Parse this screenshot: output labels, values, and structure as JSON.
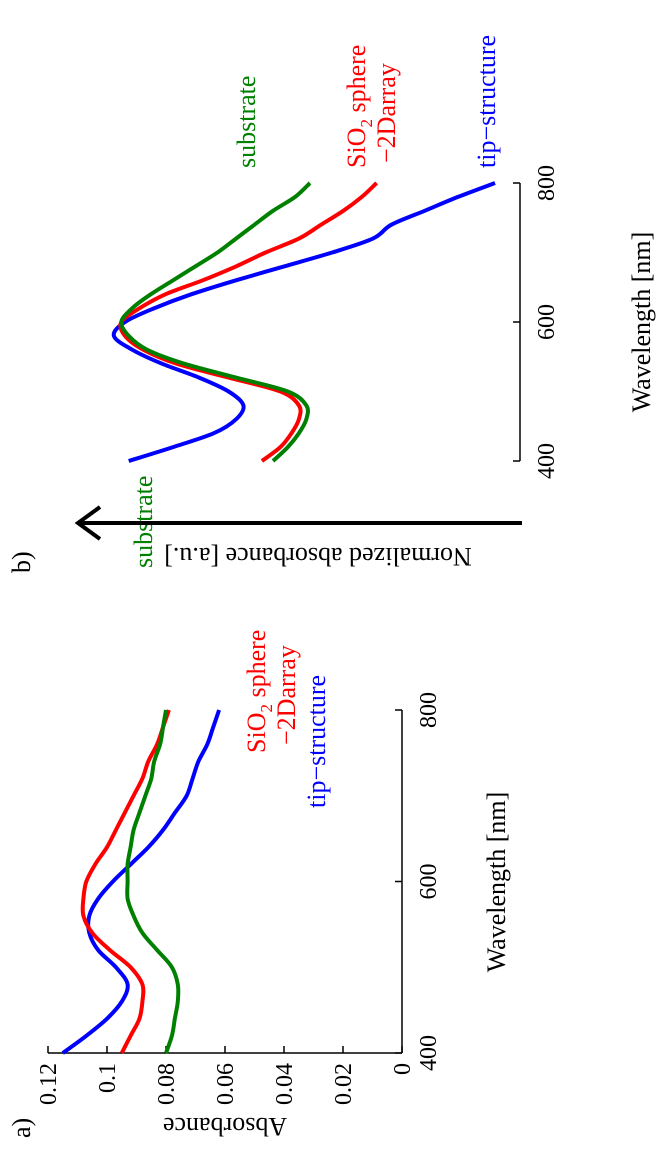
{
  "chart_data": [
    {
      "panel": "a)",
      "type": "line",
      "xlabel": "Wavelength [nm]",
      "ylabel": "Absorbance",
      "xlim": [
        400,
        800
      ],
      "ylim": [
        0,
        0.12
      ],
      "xticks": [
        "400",
        "600",
        "800"
      ],
      "yticks": [
        "0",
        "0.02",
        "0.04",
        "0.06",
        "0.08",
        "0.1",
        "0.12"
      ],
      "grid": false,
      "series": [
        {
          "name": "tip−structure",
          "color": "#0000ff",
          "x": [
            400,
            420,
            440,
            460,
            480,
            500,
            520,
            540,
            560,
            580,
            600,
            620,
            640,
            660,
            680,
            700,
            720,
            740,
            760,
            780,
            800
          ],
          "y": [
            0.115,
            0.107,
            0.1,
            0.095,
            0.093,
            0.097,
            0.103,
            0.106,
            0.106,
            0.103,
            0.098,
            0.092,
            0.086,
            0.081,
            0.077,
            0.073,
            0.071,
            0.069,
            0.066,
            0.064,
            0.062
          ]
        },
        {
          "name": "SiO2 sphere −2Darray",
          "color": "#ff0000",
          "x": [
            400,
            420,
            440,
            460,
            480,
            500,
            520,
            540,
            560,
            580,
            600,
            620,
            640,
            660,
            680,
            700,
            720,
            740,
            760,
            780,
            800
          ],
          "y": [
            0.095,
            0.092,
            0.089,
            0.088,
            0.088,
            0.092,
            0.099,
            0.105,
            0.108,
            0.108,
            0.107,
            0.104,
            0.1,
            0.097,
            0.094,
            0.091,
            0.088,
            0.086,
            0.083,
            0.081,
            0.079
          ]
        },
        {
          "name": "substrate",
          "color": "#008000",
          "x": [
            400,
            420,
            440,
            460,
            480,
            500,
            520,
            540,
            560,
            580,
            600,
            620,
            640,
            660,
            680,
            700,
            720,
            740,
            760,
            780,
            800
          ],
          "y": [
            0.08,
            0.078,
            0.077,
            0.076,
            0.076,
            0.078,
            0.083,
            0.088,
            0.091,
            0.093,
            0.093,
            0.093,
            0.092,
            0.091,
            0.089,
            0.087,
            0.085,
            0.084,
            0.082,
            0.081,
            0.08
          ]
        }
      ],
      "labels": {
        "substrate": "substrate",
        "tip": "tip−structure",
        "sio2_main": "SiO",
        "sio2_sub": "2",
        "sio2_rest": " sphere",
        "sio2_line2": "−2Darray"
      }
    },
    {
      "panel": "b)",
      "type": "line",
      "xlabel": "Wavelength [nm]",
      "ylabel": "Normalized absorbance [a.u.]",
      "xlim": [
        400,
        800
      ],
      "xticks": [
        "400",
        "600",
        "800"
      ],
      "grid": false,
      "series": [
        {
          "name": "tip−structure",
          "color": "#0000ff",
          "x": [
            400,
            420,
            440,
            460,
            480,
            500,
            520,
            540,
            560,
            580,
            600,
            620,
            640,
            660,
            680,
            700,
            720,
            740,
            760,
            780,
            800
          ],
          "y": [
            0.99,
            0.87,
            0.76,
            0.7,
            0.68,
            0.72,
            0.8,
            0.9,
            0.98,
            1.03,
            1.0,
            0.92,
            0.82,
            0.7,
            0.57,
            0.44,
            0.33,
            0.28,
            0.19,
            0.1,
            0.0
          ]
        },
        {
          "name": "SiO2 sphere −2Darray",
          "color": "#ff0000",
          "x": [
            400,
            420,
            440,
            460,
            480,
            500,
            520,
            540,
            560,
            580,
            600,
            620,
            640,
            660,
            680,
            700,
            720,
            740,
            760,
            780,
            800
          ],
          "y": [
            0.63,
            0.58,
            0.55,
            0.53,
            0.53,
            0.58,
            0.72,
            0.86,
            0.95,
            1.0,
            1.01,
            0.96,
            0.89,
            0.79,
            0.7,
            0.62,
            0.53,
            0.47,
            0.41,
            0.36,
            0.32
          ]
        },
        {
          "name": "substrate",
          "color": "#008000",
          "x": [
            400,
            420,
            440,
            460,
            480,
            500,
            520,
            540,
            560,
            580,
            600,
            620,
            640,
            660,
            680,
            700,
            720,
            740,
            760,
            780,
            800
          ],
          "y": [
            0.6,
            0.56,
            0.53,
            0.51,
            0.51,
            0.56,
            0.7,
            0.84,
            0.94,
            0.99,
            1.01,
            0.98,
            0.93,
            0.87,
            0.81,
            0.75,
            0.7,
            0.65,
            0.6,
            0.54,
            0.5
          ]
        }
      ],
      "labels": {
        "substrate": "substrate",
        "tip": "tip−structure",
        "sio2_main": "SiO",
        "sio2_sub": "2",
        "sio2_rest": " sphere",
        "sio2_line2": "−2Darray"
      }
    }
  ]
}
